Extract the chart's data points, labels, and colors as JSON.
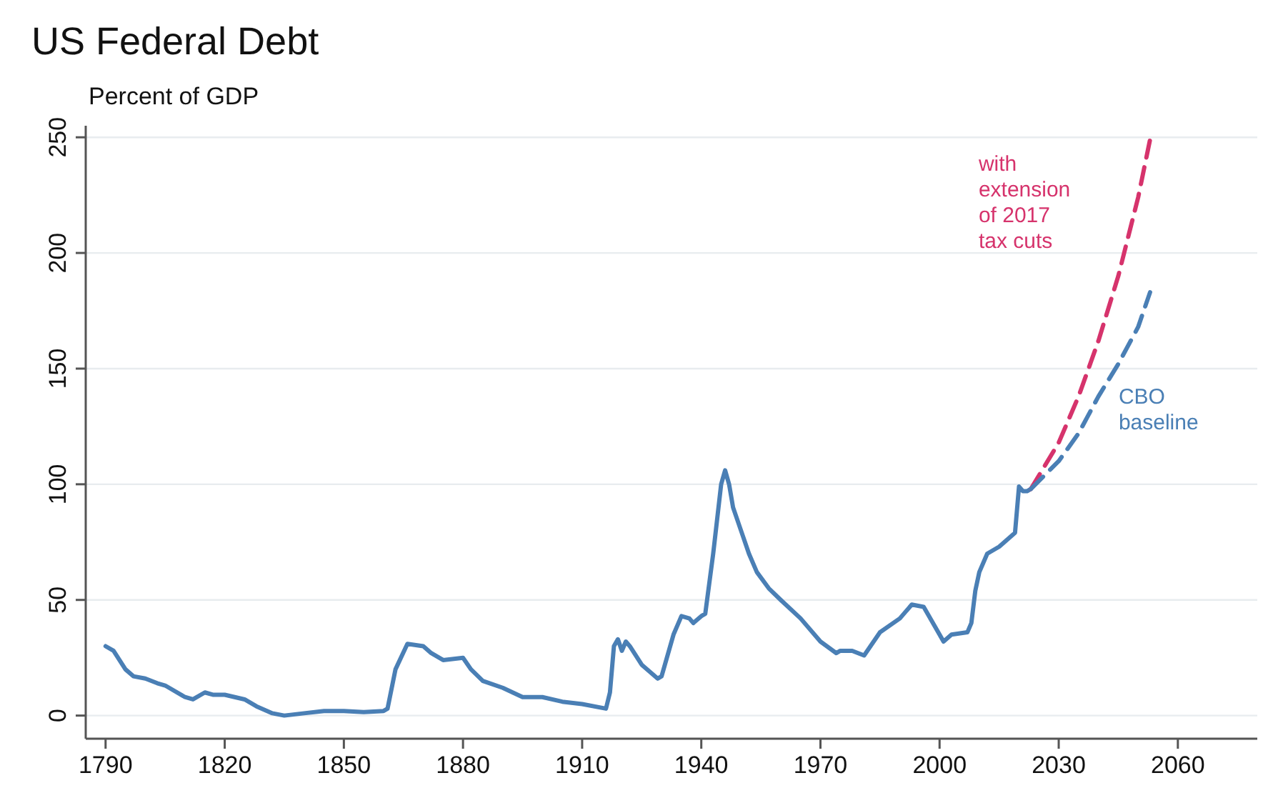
{
  "chart_data": {
    "type": "line",
    "title": "US Federal Debt",
    "subtitle": "Percent of GDP",
    "xlim": [
      1785,
      2080
    ],
    "ylim": [
      -10,
      255
    ],
    "xticks": [
      1790,
      1820,
      1850,
      1880,
      1910,
      1940,
      1970,
      2000,
      2030,
      2060
    ],
    "yticks": [
      0,
      50,
      100,
      150,
      200,
      250
    ],
    "grid": "y",
    "series": [
      {
        "color": "#4a7fb5",
        "line_style": "solid",
        "x": [
          1790,
          1792,
          1795,
          1797,
          1800,
          1803,
          1805,
          1810,
          1812,
          1815,
          1817,
          1820,
          1825,
          1828,
          1832,
          1835,
          1840,
          1845,
          1850,
          1855,
          1860,
          1861,
          1863,
          1866,
          1870,
          1872,
          1875,
          1880,
          1882,
          1885,
          1890,
          1895,
          1900,
          1905,
          1910,
          1916,
          1917,
          1918,
          1919,
          1920,
          1921,
          1922,
          1925,
          1929,
          1930,
          1933,
          1935,
          1937,
          1938,
          1940,
          1941,
          1943,
          1945,
          1946,
          1947,
          1948,
          1950,
          1952,
          1954,
          1957,
          1960,
          1965,
          1970,
          1974,
          1975,
          1978,
          1981,
          1985,
          1990,
          1993,
          1996,
          2000,
          2001,
          2003,
          2007,
          2008,
          2009,
          2010,
          2012,
          2015,
          2019,
          2020,
          2021,
          2022,
          2023
        ],
        "values": [
          30,
          28,
          20,
          17,
          16,
          14,
          13,
          8,
          7,
          10,
          9,
          9,
          7,
          4,
          1,
          0,
          1,
          2,
          2,
          1.5,
          2,
          3,
          20,
          31,
          30,
          27,
          24,
          25,
          20,
          15,
          12,
          8,
          8,
          6,
          5,
          3,
          10,
          30,
          33,
          28,
          32,
          30,
          22,
          16,
          17,
          35,
          43,
          42,
          40,
          43,
          44,
          70,
          100,
          106,
          100,
          90,
          80,
          70,
          62,
          55,
          50,
          42,
          32,
          27,
          28,
          28,
          26,
          36,
          42,
          48,
          47,
          35,
          32,
          35,
          36,
          40,
          54,
          62,
          70,
          73,
          79,
          99,
          97,
          97,
          98
        ]
      },
      {
        "name": "with extension of 2017 tax cuts",
        "color": "#d6336c",
        "line_style": "dashed",
        "x": [
          2023,
          2030,
          2035,
          2040,
          2045,
          2050,
          2053
        ],
        "values": [
          98,
          118,
          138,
          162,
          190,
          224,
          249
        ]
      },
      {
        "name": "CBO baseline",
        "color": "#4a7fb5",
        "line_style": "dashed",
        "x": [
          2023,
          2030,
          2035,
          2040,
          2045,
          2050,
          2053
        ],
        "values": [
          98,
          110,
          122,
          138,
          152,
          168,
          183
        ]
      }
    ]
  }
}
